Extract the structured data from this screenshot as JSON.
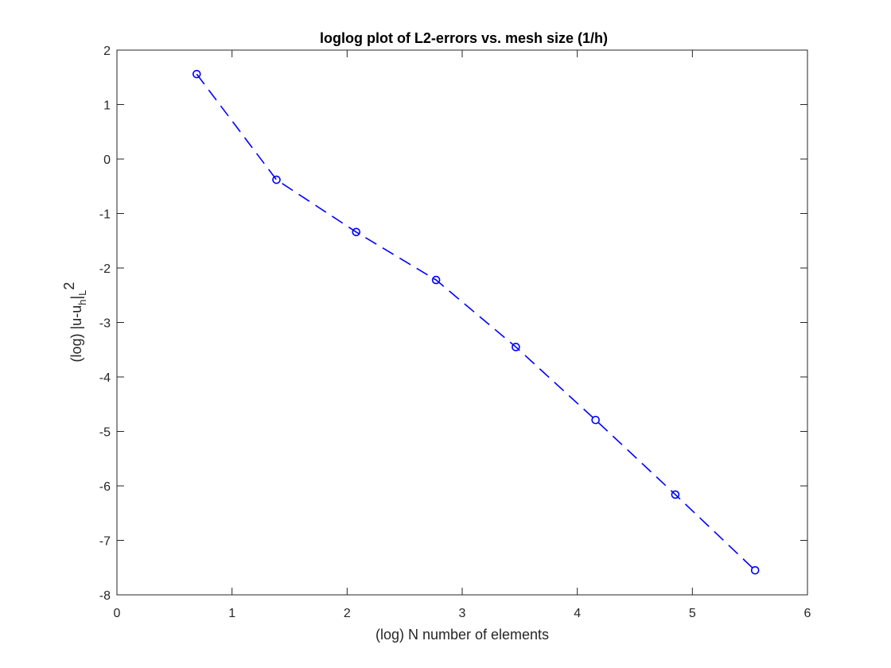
{
  "chart_data": {
    "type": "line",
    "title": "loglog plot of L2-errors vs. mesh size (1/h)",
    "xlabel": "(log) N number of elements",
    "ylabel": {
      "prefix": "(log) |u-u",
      "sub_h": "h",
      "bar": "|",
      "sub_L": "L",
      "sup_2": "2"
    },
    "xlim": [
      0,
      6
    ],
    "ylim": [
      -8,
      2
    ],
    "xticks": [
      0,
      1,
      2,
      3,
      4,
      5,
      6
    ],
    "yticks": [
      -8,
      -7,
      -6,
      -5,
      -4,
      -3,
      -2,
      -1,
      0,
      1,
      2
    ],
    "xtick_labels": [
      "0",
      "1",
      "2",
      "3",
      "4",
      "5",
      "6"
    ],
    "ytick_labels": [
      "-8",
      "-7",
      "-6",
      "-5",
      "-4",
      "-3",
      "-2",
      "-1",
      "0",
      "1",
      "2"
    ],
    "grid": false,
    "series": [
      {
        "color": "#0000ff",
        "line_style": "dashed",
        "marker": "circle",
        "x": [
          0.693,
          1.386,
          2.079,
          2.773,
          3.466,
          4.159,
          4.852,
          5.545
        ],
        "y": [
          1.56,
          -0.38,
          -1.34,
          -2.22,
          -3.45,
          -4.79,
          -6.16,
          -7.55
        ]
      }
    ]
  }
}
